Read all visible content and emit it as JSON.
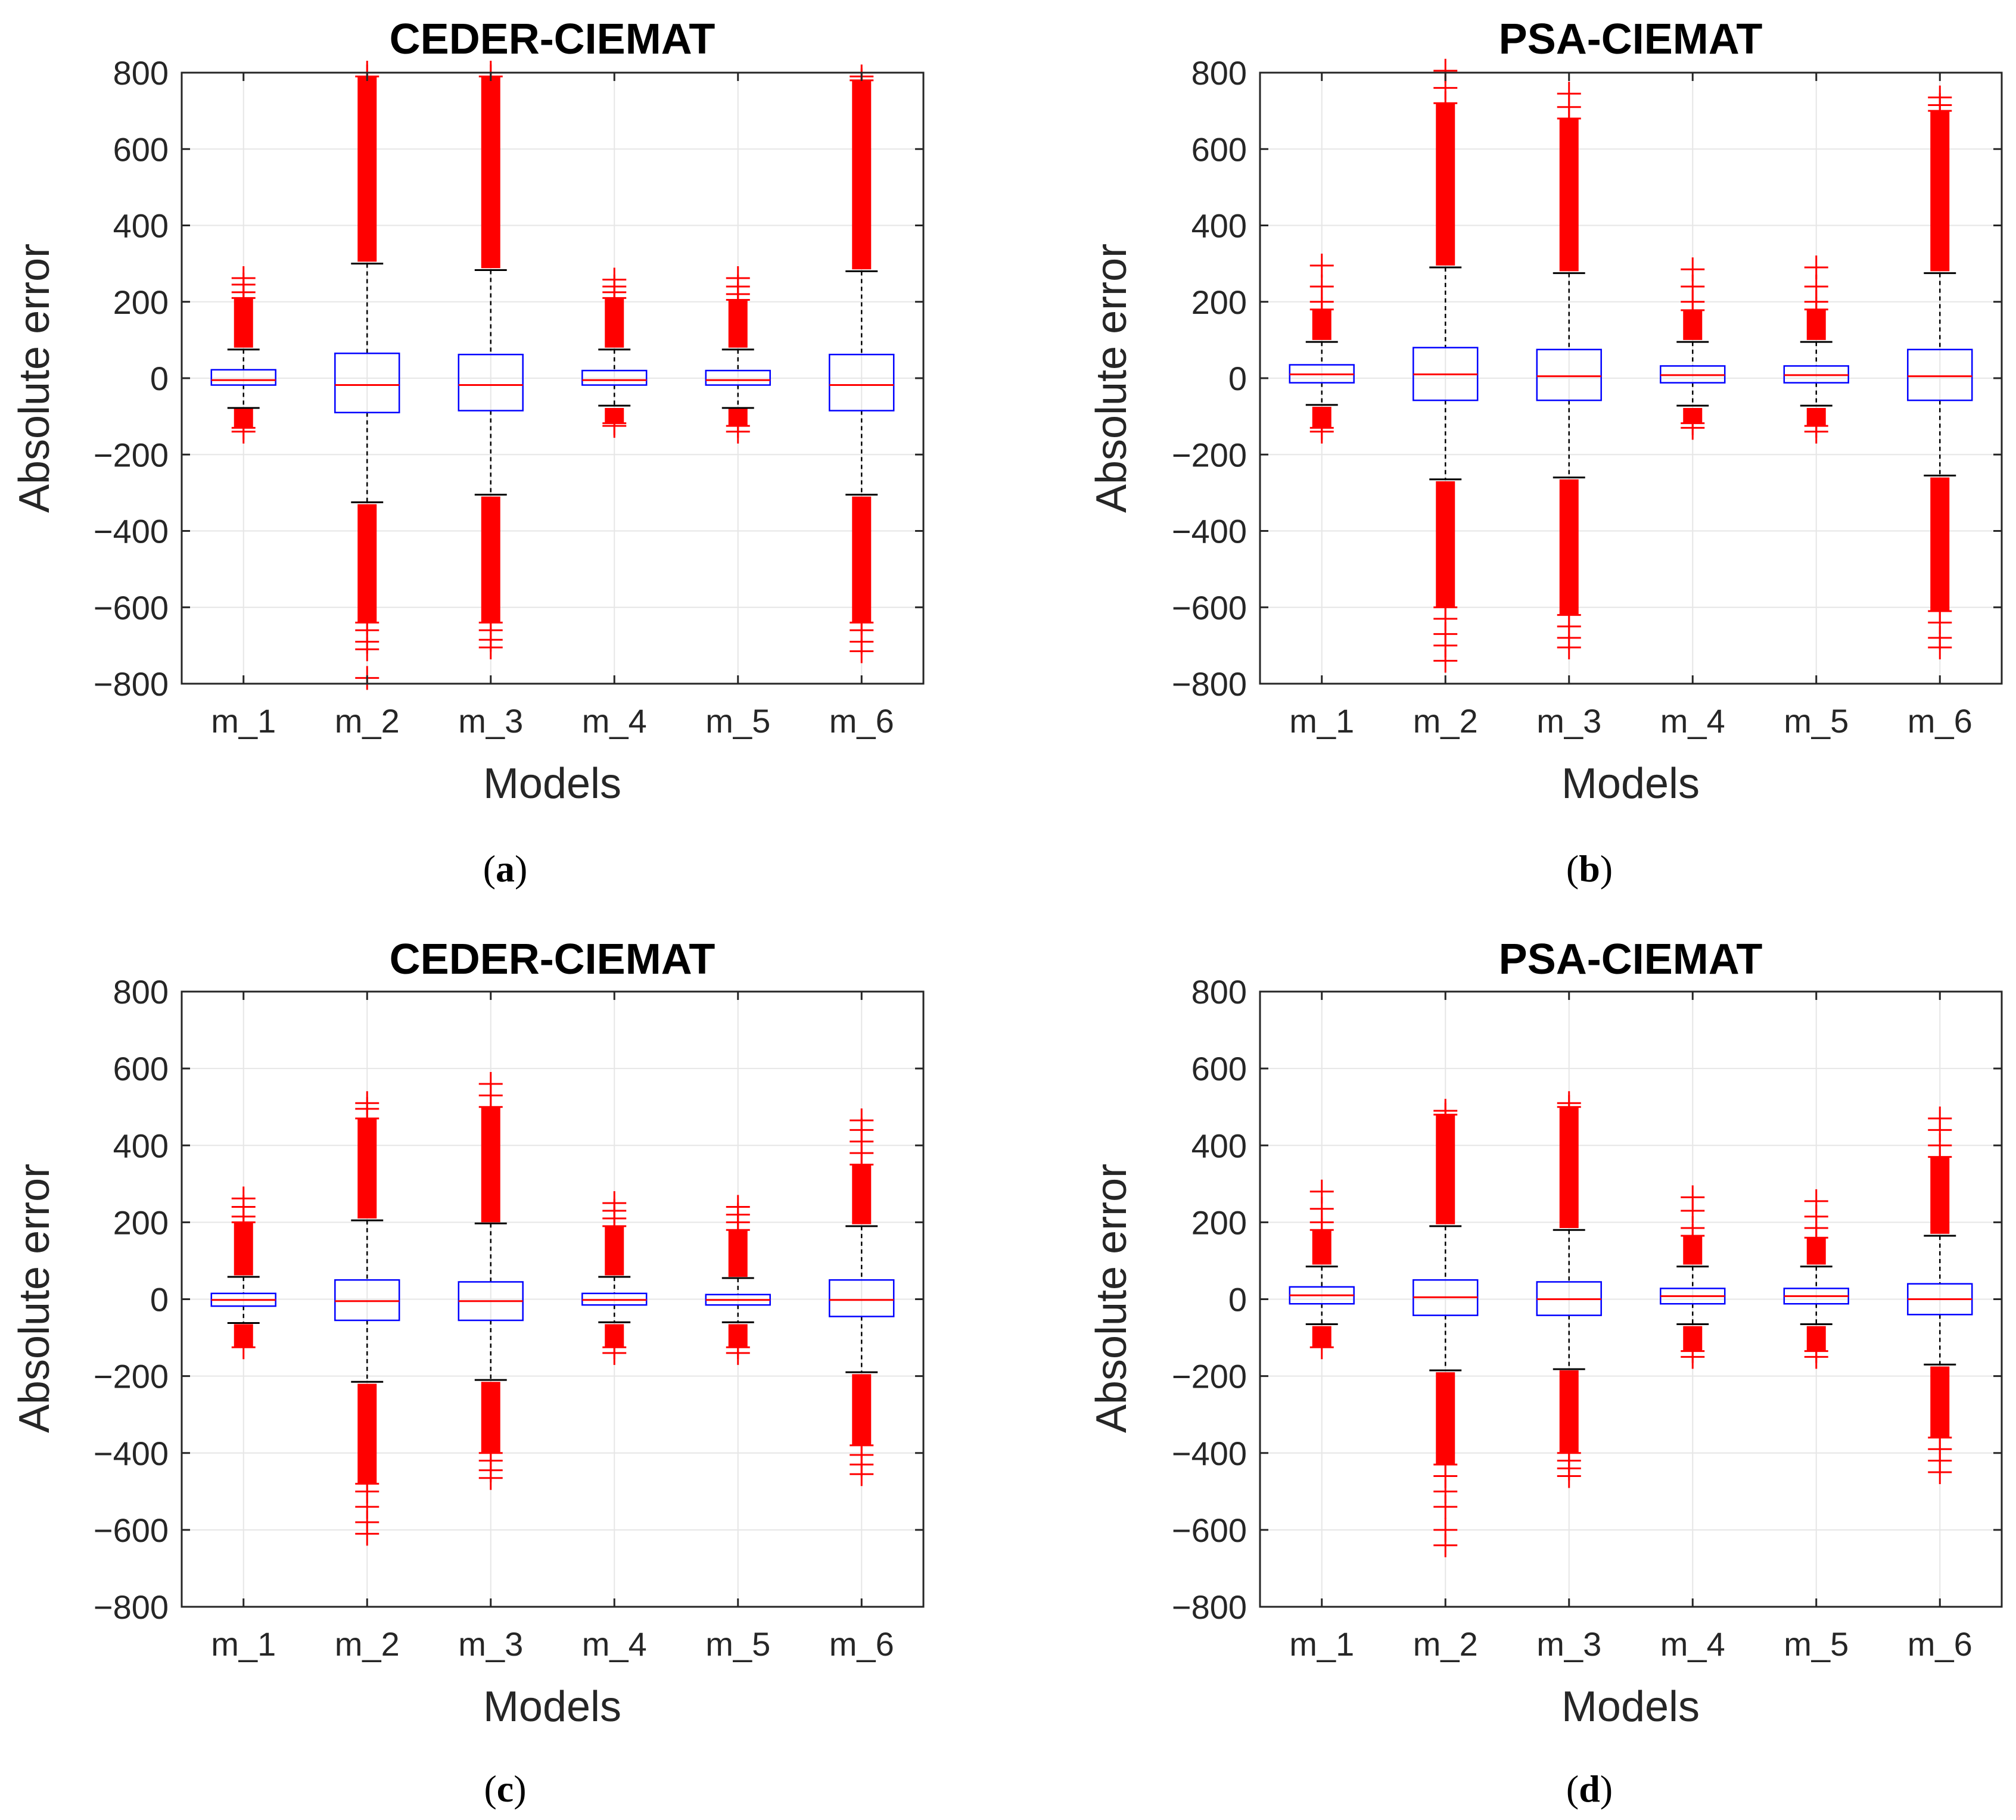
{
  "figure": {
    "colors": {
      "box": "#0000ff",
      "median": "#ff0000",
      "outlier": "#ff0000",
      "whisker": "#000000",
      "grid": "#e6e6e6",
      "axis": "#262626"
    },
    "panels_order": [
      "a",
      "b",
      "c",
      "d"
    ]
  },
  "chart_data": [
    {
      "type": "box",
      "panel": "a",
      "sublabel": "(a)",
      "sublabel_letter": "a",
      "title": "CEDER-CIEMAT",
      "xlabel": "Models",
      "ylabel": "Absolute error",
      "ylim": [
        -800,
        800
      ],
      "yticks": [
        800,
        600,
        400,
        200,
        0,
        -200,
        -400,
        -600,
        -800
      ],
      "ytick_labels": [
        "800",
        "600",
        "400",
        "200",
        "0",
        "−200",
        "−400",
        "−600",
        "−800"
      ],
      "categories": [
        "m_1",
        "m_2",
        "m_3",
        "m_4",
        "m_5",
        "m_6"
      ],
      "grid": true,
      "boxes": [
        {
          "q1": -18,
          "median": -5,
          "q3": 22,
          "whisker_low": -78,
          "whisker_high": 75,
          "outlier_low": [
            -80,
            -130
          ],
          "outlier_high": [
            80,
            210
          ],
          "sparse_low": [
            -140
          ],
          "sparse_high": [
            225,
            245,
            262
          ]
        },
        {
          "q1": -90,
          "median": -18,
          "q3": 65,
          "whisker_low": -325,
          "whisker_high": 300,
          "outlier_low": [
            -330,
            -640
          ],
          "outlier_high": [
            305,
            790
          ],
          "sparse_low": [
            -660,
            -690,
            -710,
            -785
          ],
          "sparse_high": [
            800
          ]
        },
        {
          "q1": -85,
          "median": -18,
          "q3": 62,
          "whisker_low": -305,
          "whisker_high": 283,
          "outlier_low": [
            -310,
            -640
          ],
          "outlier_high": [
            288,
            790
          ],
          "sparse_low": [
            -660,
            -685,
            -705
          ],
          "sparse_high": [
            800
          ]
        },
        {
          "q1": -18,
          "median": -5,
          "q3": 20,
          "whisker_low": -72,
          "whisker_high": 75,
          "outlier_low": [
            -78,
            -118
          ],
          "outlier_high": [
            80,
            210
          ],
          "sparse_low": [
            -125
          ],
          "sparse_high": [
            225,
            240,
            258
          ]
        },
        {
          "q1": -18,
          "median": -5,
          "q3": 20,
          "whisker_low": -78,
          "whisker_high": 75,
          "outlier_low": [
            -80,
            -125
          ],
          "outlier_high": [
            80,
            205
          ],
          "sparse_low": [
            -140
          ],
          "sparse_high": [
            220,
            240,
            262
          ]
        },
        {
          "q1": -85,
          "median": -18,
          "q3": 62,
          "whisker_low": -305,
          "whisker_high": 280,
          "outlier_low": [
            -310,
            -640
          ],
          "outlier_high": [
            285,
            780
          ],
          "sparse_low": [
            -660,
            -690,
            -715
          ],
          "sparse_high": [
            790
          ]
        }
      ]
    },
    {
      "type": "box",
      "panel": "b",
      "sublabel": "(b)",
      "sublabel_letter": "b",
      "title": "PSA-CIEMAT",
      "xlabel": "Models",
      "ylabel": "Absolute error",
      "ylim": [
        -800,
        800
      ],
      "yticks": [
        800,
        600,
        400,
        200,
        0,
        -200,
        -400,
        -600,
        -800
      ],
      "ytick_labels": [
        "800",
        "600",
        "400",
        "200",
        "0",
        "−200",
        "−400",
        "−600",
        "−800"
      ],
      "categories": [
        "m_1",
        "m_2",
        "m_3",
        "m_4",
        "m_5",
        "m_6"
      ],
      "grid": true,
      "boxes": [
        {
          "q1": -12,
          "median": 10,
          "q3": 35,
          "whisker_low": -70,
          "whisker_high": 95,
          "outlier_low": [
            -75,
            -130
          ],
          "outlier_high": [
            100,
            180
          ],
          "sparse_low": [
            -140
          ],
          "sparse_high": [
            200,
            240,
            295
          ]
        },
        {
          "q1": -58,
          "median": 10,
          "q3": 80,
          "whisker_low": -265,
          "whisker_high": 290,
          "outlier_low": [
            -270,
            -600
          ],
          "outlier_high": [
            295,
            720
          ],
          "sparse_low": [
            -630,
            -670,
            -700,
            -740
          ],
          "sparse_high": [
            760,
            805
          ]
        },
        {
          "q1": -58,
          "median": 5,
          "q3": 75,
          "whisker_low": -260,
          "whisker_high": 275,
          "outlier_low": [
            -265,
            -620
          ],
          "outlier_high": [
            280,
            680
          ],
          "sparse_low": [
            -650,
            -680,
            -705
          ],
          "sparse_high": [
            710,
            745
          ]
        },
        {
          "q1": -12,
          "median": 8,
          "q3": 32,
          "whisker_low": -72,
          "whisker_high": 95,
          "outlier_low": [
            -78,
            -118
          ],
          "outlier_high": [
            100,
            178
          ],
          "sparse_low": [
            -130
          ],
          "sparse_high": [
            200,
            240,
            285
          ]
        },
        {
          "q1": -12,
          "median": 8,
          "q3": 32,
          "whisker_low": -72,
          "whisker_high": 95,
          "outlier_low": [
            -78,
            -125
          ],
          "outlier_high": [
            100,
            180
          ],
          "sparse_low": [
            -140
          ],
          "sparse_high": [
            200,
            240,
            290
          ]
        },
        {
          "q1": -58,
          "median": 5,
          "q3": 75,
          "whisker_low": -255,
          "whisker_high": 275,
          "outlier_low": [
            -260,
            -610
          ],
          "outlier_high": [
            280,
            700
          ],
          "sparse_low": [
            -640,
            -680,
            -705
          ],
          "sparse_high": [
            715,
            735
          ]
        }
      ]
    },
    {
      "type": "box",
      "panel": "c",
      "sublabel": "(c)",
      "sublabel_letter": "c",
      "title": "CEDER-CIEMAT",
      "xlabel": "Models",
      "ylabel": "Absolute error",
      "ylim": [
        -800,
        800
      ],
      "yticks": [
        800,
        600,
        400,
        200,
        0,
        -200,
        -400,
        -600,
        -800
      ],
      "ytick_labels": [
        "800",
        "600",
        "400",
        "200",
        "0",
        "−200",
        "−400",
        "−600",
        "−800"
      ],
      "categories": [
        "m_1",
        "m_2",
        "m_3",
        "m_4",
        "m_5",
        "m_6"
      ],
      "grid": true,
      "boxes": [
        {
          "q1": -18,
          "median": -2,
          "q3": 15,
          "whisker_low": -62,
          "whisker_high": 58,
          "outlier_low": [
            -65,
            -125
          ],
          "outlier_high": [
            62,
            200
          ],
          "sparse_low": [],
          "sparse_high": [
            215,
            240,
            262
          ]
        },
        {
          "q1": -55,
          "median": -5,
          "q3": 50,
          "whisker_low": -215,
          "whisker_high": 205,
          "outlier_low": [
            -220,
            -480
          ],
          "outlier_high": [
            210,
            470
          ],
          "sparse_low": [
            -500,
            -540,
            -580,
            -610
          ],
          "sparse_high": [
            495,
            510
          ]
        },
        {
          "q1": -55,
          "median": -5,
          "q3": 45,
          "whisker_low": -210,
          "whisker_high": 197,
          "outlier_low": [
            -215,
            -400
          ],
          "outlier_high": [
            200,
            500
          ],
          "sparse_low": [
            -420,
            -445,
            -465
          ],
          "sparse_high": [
            530,
            560
          ]
        },
        {
          "q1": -15,
          "median": -2,
          "q3": 15,
          "whisker_low": -60,
          "whisker_high": 58,
          "outlier_low": [
            -65,
            -125
          ],
          "outlier_high": [
            62,
            190
          ],
          "sparse_low": [
            -140
          ],
          "sparse_high": [
            210,
            230,
            250
          ]
        },
        {
          "q1": -15,
          "median": -2,
          "q3": 12,
          "whisker_low": -60,
          "whisker_high": 55,
          "outlier_low": [
            -65,
            -125
          ],
          "outlier_high": [
            58,
            180
          ],
          "sparse_low": [
            -140
          ],
          "sparse_high": [
            200,
            220,
            240
          ]
        },
        {
          "q1": -45,
          "median": -2,
          "q3": 50,
          "whisker_low": -190,
          "whisker_high": 190,
          "outlier_low": [
            -195,
            -380
          ],
          "outlier_high": [
            195,
            350
          ],
          "sparse_low": [
            -405,
            -430,
            -455
          ],
          "sparse_high": [
            380,
            410,
            440,
            465
          ]
        }
      ]
    },
    {
      "type": "box",
      "panel": "d",
      "sublabel": "(d)",
      "sublabel_letter": "d",
      "title": "PSA-CIEMAT",
      "xlabel": "Models",
      "ylabel": "Absolute error",
      "ylim": [
        -800,
        800
      ],
      "yticks": [
        800,
        600,
        400,
        200,
        0,
        -200,
        -400,
        -600,
        -800
      ],
      "ytick_labels": [
        "800",
        "600",
        "400",
        "200",
        "0",
        "−200",
        "−400",
        "−600",
        "−800"
      ],
      "categories": [
        "m_1",
        "m_2",
        "m_3",
        "m_4",
        "m_5",
        "m_6"
      ],
      "grid": true,
      "boxes": [
        {
          "q1": -12,
          "median": 10,
          "q3": 32,
          "whisker_low": -65,
          "whisker_high": 85,
          "outlier_low": [
            -70,
            -125
          ],
          "outlier_high": [
            90,
            180
          ],
          "sparse_low": [],
          "sparse_high": [
            200,
            235,
            280
          ]
        },
        {
          "q1": -42,
          "median": 5,
          "q3": 50,
          "whisker_low": -185,
          "whisker_high": 190,
          "outlier_low": [
            -190,
            -430
          ],
          "outlier_high": [
            195,
            480
          ],
          "sparse_low": [
            -460,
            -500,
            -540,
            -600,
            -640
          ],
          "sparse_high": [
            490
          ]
        },
        {
          "q1": -42,
          "median": 0,
          "q3": 45,
          "whisker_low": -182,
          "whisker_high": 180,
          "outlier_low": [
            -185,
            -400
          ],
          "outlier_high": [
            185,
            500
          ],
          "sparse_low": [
            -420,
            -440,
            -460
          ],
          "sparse_high": [
            510
          ]
        },
        {
          "q1": -12,
          "median": 8,
          "q3": 28,
          "whisker_low": -65,
          "whisker_high": 85,
          "outlier_low": [
            -70,
            -135
          ],
          "outlier_high": [
            90,
            165
          ],
          "sparse_low": [
            -150
          ],
          "sparse_high": [
            185,
            230,
            265
          ]
        },
        {
          "q1": -12,
          "median": 8,
          "q3": 28,
          "whisker_low": -65,
          "whisker_high": 85,
          "outlier_low": [
            -70,
            -135
          ],
          "outlier_high": [
            90,
            160
          ],
          "sparse_low": [
            -150
          ],
          "sparse_high": [
            185,
            215,
            255
          ]
        },
        {
          "q1": -40,
          "median": 0,
          "q3": 40,
          "whisker_low": -170,
          "whisker_high": 165,
          "outlier_low": [
            -175,
            -360
          ],
          "outlier_high": [
            170,
            370
          ],
          "sparse_low": [
            -390,
            -420,
            -450
          ],
          "sparse_high": [
            400,
            440,
            470
          ]
        }
      ]
    }
  ]
}
